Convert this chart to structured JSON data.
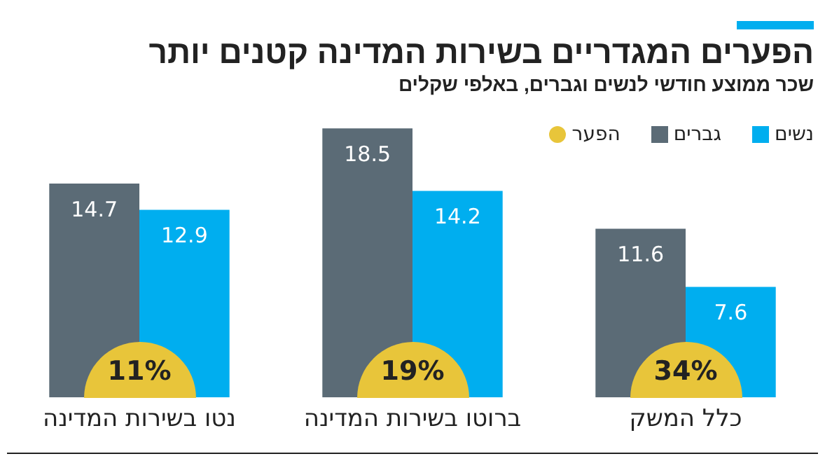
{
  "chart_data": {
    "type": "bar",
    "title": "הפערים המגדריים בשירות המדינה קטנים יותר",
    "subtitle": "שכר ממוצע חודשי לנשים וגברים, באלפי שקלים",
    "categories": [
      "נטו בשירות המדינה",
      "ברוטו בשירות המדינה",
      "כלל המשק"
    ],
    "series": [
      {
        "name": "נשים",
        "color": "#00aeef",
        "values": [
          12.9,
          14.2,
          7.6
        ]
      },
      {
        "name": "גברים",
        "color": "#5b6b76",
        "values": [
          14.7,
          18.5,
          11.6
        ]
      }
    ],
    "annotations": [
      "הפער",
      {
        "text": "11%",
        "x": "נטו בשירות המדינה",
        "y": 0
      },
      {
        "text": "19%",
        "x": "ברוטו בשירות המדינה",
        "y": 0
      },
      {
        "text": "34%",
        "x": "כלל המשק",
        "y": 0
      }
    ],
    "data_labels": true,
    "legend": "top right",
    "grid": false
  }
}
